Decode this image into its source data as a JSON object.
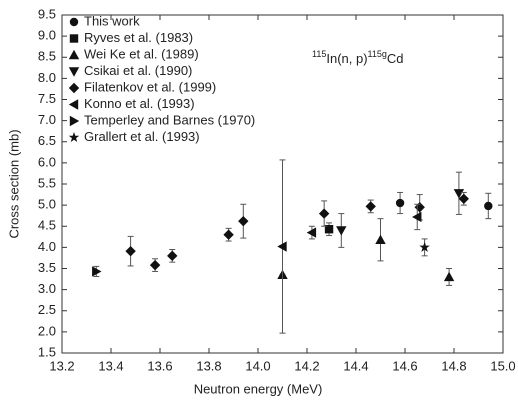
{
  "chart_data": {
    "type": "scatter",
    "xlabel": "Neutron energy (MeV)",
    "ylabel": "Cross section (mb)",
    "annotation": {
      "mass1": "115",
      "text1": "In(n, p)",
      "mass2": "115g",
      "text2": "Cd"
    },
    "xlim": [
      13.2,
      15.0
    ],
    "xticks": [
      13.2,
      13.4,
      13.6,
      13.8,
      {
        "value": 14,
        "label": "14.0"
      },
      14.2,
      14.4,
      14.6,
      14.8,
      {
        "value": 15,
        "label": "15.0"
      }
    ],
    "ylim": [
      1.5,
      9.5
    ],
    "yticks": [
      1.5,
      {
        "value": 2,
        "label": "2.0"
      },
      2.5,
      {
        "value": 3,
        "label": "3.0"
      },
      3.5,
      {
        "value": 4,
        "label": "4.0"
      },
      4.5,
      {
        "value": 5,
        "label": "5.0"
      },
      5.5,
      {
        "value": 6,
        "label": "6.0"
      },
      6.5,
      {
        "value": 7,
        "label": "7.0"
      },
      7.5,
      {
        "value": 8,
        "label": "8.0"
      },
      8.5,
      {
        "value": 9,
        "label": "9.0"
      },
      9.5
    ],
    "series": [
      {
        "name": "This work",
        "marker": "circle",
        "color": "#111",
        "x": [
          14.58,
          14.94
        ],
        "values": [
          5.05,
          4.98
        ],
        "errors": [
          0.25,
          0.3
        ]
      },
      {
        "name": "Ryves et al. (1983)",
        "marker": "square",
        "color": "#111",
        "x": [
          14.29
        ],
        "values": [
          4.43
        ],
        "errors": [
          0.15
        ]
      },
      {
        "name": "Wei Ke et al. (1989)",
        "marker": "triangle-up",
        "color": "#111",
        "x": [
          14.1,
          14.5,
          14.78
        ],
        "values": [
          3.35,
          4.18,
          3.3
        ],
        "errors": [
          0.0,
          0.5,
          0.2
        ]
      },
      {
        "name": "Csikai et al. (1990)",
        "marker": "triangle-down",
        "color": "#111",
        "x": [
          14.34,
          14.82
        ],
        "values": [
          4.4,
          5.28
        ],
        "errors": [
          0.4,
          0.5
        ]
      },
      {
        "name": "Filatenkov et al. (1999)",
        "marker": "diamond",
        "color": "#111",
        "x": [
          13.48,
          13.58,
          13.65,
          13.88,
          13.94,
          14.27,
          14.46,
          14.66,
          14.84
        ],
        "values": [
          3.91,
          3.58,
          3.8,
          4.3,
          4.62,
          4.8,
          4.97,
          4.95,
          5.15
        ],
        "errors": [
          0.35,
          0.15,
          0.15,
          0.15,
          0.4,
          0.3,
          0.15,
          0.3,
          0.15
        ]
      },
      {
        "name": "Konno et al. (1993)",
        "marker": "triangle-left",
        "color": "#111",
        "x": [
          14.1,
          14.22,
          14.65
        ],
        "values": [
          4.02,
          4.35,
          4.72
        ],
        "errors": [
          2.05,
          0.15,
          0.3
        ]
      },
      {
        "name": "Temperley and Barnes (1970)",
        "marker": "triangle-right",
        "color": "#111",
        "x": [
          13.34
        ],
        "values": [
          3.43
        ],
        "errors": [
          0.12
        ]
      },
      {
        "name": "Grallert et al. (1993)",
        "marker": "star",
        "color": "#111",
        "x": [
          14.68
        ],
        "values": [
          4.0
        ],
        "errors": [
          0.2
        ]
      }
    ]
  }
}
